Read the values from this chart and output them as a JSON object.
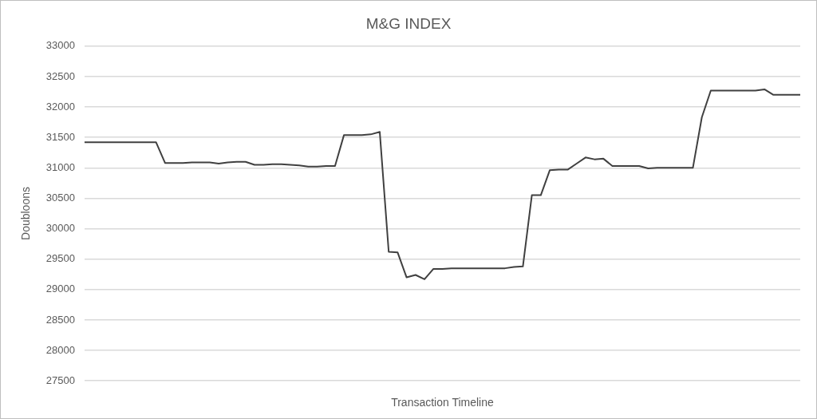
{
  "chart_data": {
    "type": "line",
    "title": "M&G INDEX",
    "xlabel": "Transaction Timeline",
    "ylabel": "Doubloons",
    "categories": [
      null,
      null,
      null,
      null,
      null,
      null,
      null,
      null,
      null,
      null,
      null,
      null,
      null,
      null,
      null,
      null,
      null,
      null,
      null,
      null,
      null,
      null,
      null,
      null,
      null,
      null,
      null,
      null,
      null,
      null,
      null,
      null,
      null,
      null,
      null,
      null,
      null,
      null,
      null,
      null,
      null,
      null,
      null,
      null,
      null,
      null,
      null,
      null,
      null,
      null,
      null,
      null,
      null,
      null,
      null,
      null,
      null,
      null,
      null,
      null,
      null,
      null,
      null,
      null,
      null,
      null,
      null,
      null,
      null,
      null,
      null,
      null,
      null,
      null,
      null,
      null,
      null,
      null,
      null,
      null,
      null
    ],
    "series": [
      {
        "color": "#404040",
        "values": [
          31420,
          31420,
          31420,
          31420,
          31420,
          31420,
          31420,
          31420,
          31420,
          31080,
          31080,
          31080,
          31090,
          31090,
          31090,
          31070,
          31090,
          31100,
          31100,
          31050,
          31050,
          31060,
          31060,
          31050,
          31040,
          31020,
          31020,
          31030,
          31030,
          31540,
          31540,
          31540,
          31550,
          31590,
          29620,
          29610,
          29200,
          29240,
          29170,
          29340,
          29340,
          29350,
          29350,
          29350,
          29350,
          29350,
          29350,
          29350,
          29370,
          29380,
          30550,
          30550,
          30960,
          30970,
          30970,
          31070,
          31170,
          31140,
          31150,
          31030,
          31030,
          31030,
          31030,
          30990,
          31000,
          31000,
          31000,
          31000,
          31000,
          31830,
          32270,
          32270,
          32270,
          32270,
          32270,
          32270,
          32290,
          32200,
          32200,
          32200,
          32200
        ]
      }
    ],
    "ylim": [
      27500,
      33000
    ],
    "yticks": [
      27500,
      28000,
      28500,
      29000,
      29500,
      30000,
      30500,
      31000,
      31500,
      32000,
      32500,
      33000
    ],
    "grid": "y",
    "legend": false,
    "marker": "none",
    "line_style": "solid",
    "tick_labels": "y"
  }
}
